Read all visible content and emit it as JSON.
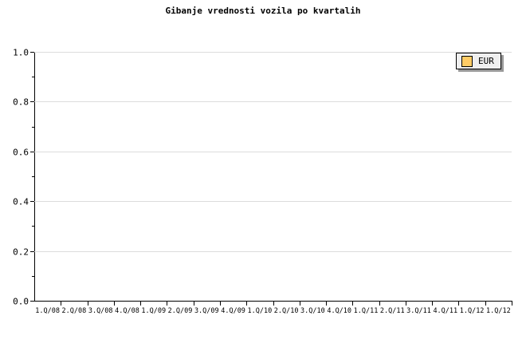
{
  "chart_data": {
    "type": "line",
    "title": "Gibanje vrednosti vozila po kvartalih",
    "categories": [
      "1.Q/08",
      "2.Q/08",
      "3.Q/08",
      "4.Q/08",
      "1.Q/09",
      "2.Q/09",
      "3.Q/09",
      "4.Q/09",
      "1.Q/10",
      "2.Q/10",
      "3.Q/10",
      "4.Q/10",
      "1.Q/11",
      "2.Q/11",
      "3.Q/11",
      "4.Q/11",
      "1.Q/12",
      "1.Q/12"
    ],
    "series": [
      {
        "name": "EUR",
        "values": [],
        "color": "#ffcc66"
      }
    ],
    "xlabel": "",
    "ylabel": "",
    "ylim": [
      0,
      1
    ],
    "y_major_ticks": [
      "0.0",
      "0.2",
      "0.4",
      "0.6",
      "0.8",
      "1.0"
    ],
    "y_minor_ticks": [
      0.1,
      0.3,
      0.5,
      0.7,
      0.9
    ],
    "grid": true,
    "legend_position": "top-right",
    "note": "plot area contains no rendered data points"
  },
  "legend": {
    "items": [
      {
        "label": "EUR",
        "swatch_color": "#ffcc66"
      }
    ]
  },
  "colors": {
    "background": "#ffffff",
    "axis": "#000000",
    "grid": "#dcdcdc",
    "title": "#000000",
    "legend_bg": "#efefef",
    "legend_border": "#000000",
    "legend_shadow": "#999999",
    "series_eur": "#ffcc66"
  }
}
